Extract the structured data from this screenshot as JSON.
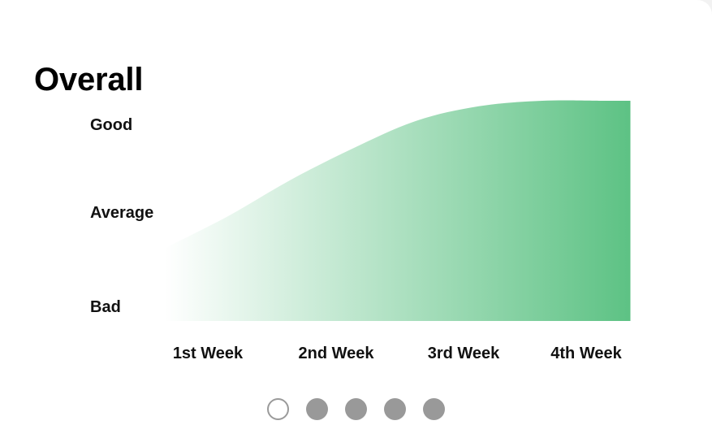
{
  "title": "Overall",
  "chart_data": {
    "type": "area",
    "title": "Overall",
    "categories": [
      "1st Week",
      "2nd Week",
      "3rd Week",
      "4th Week"
    ],
    "y_levels": [
      "Bad",
      "Average",
      "Good"
    ],
    "ylim": [
      0,
      2.4
    ],
    "series": [
      {
        "x": [
          0.0,
          0.5,
          1.0,
          1.5,
          2.0,
          2.5,
          3.0,
          3.5,
          3.7
        ],
        "values": [
          0.8,
          1.15,
          1.55,
          1.9,
          2.2,
          2.36,
          2.42,
          2.42,
          2.42
        ]
      }
    ],
    "grid": false,
    "legend": "none",
    "colors": {
      "fill_start": "#ffffff",
      "fill_end": "#5dc284"
    }
  },
  "pager": {
    "count": 5,
    "active_index": 0,
    "active_color": "#ffffff",
    "inactive_color": "#999999"
  }
}
